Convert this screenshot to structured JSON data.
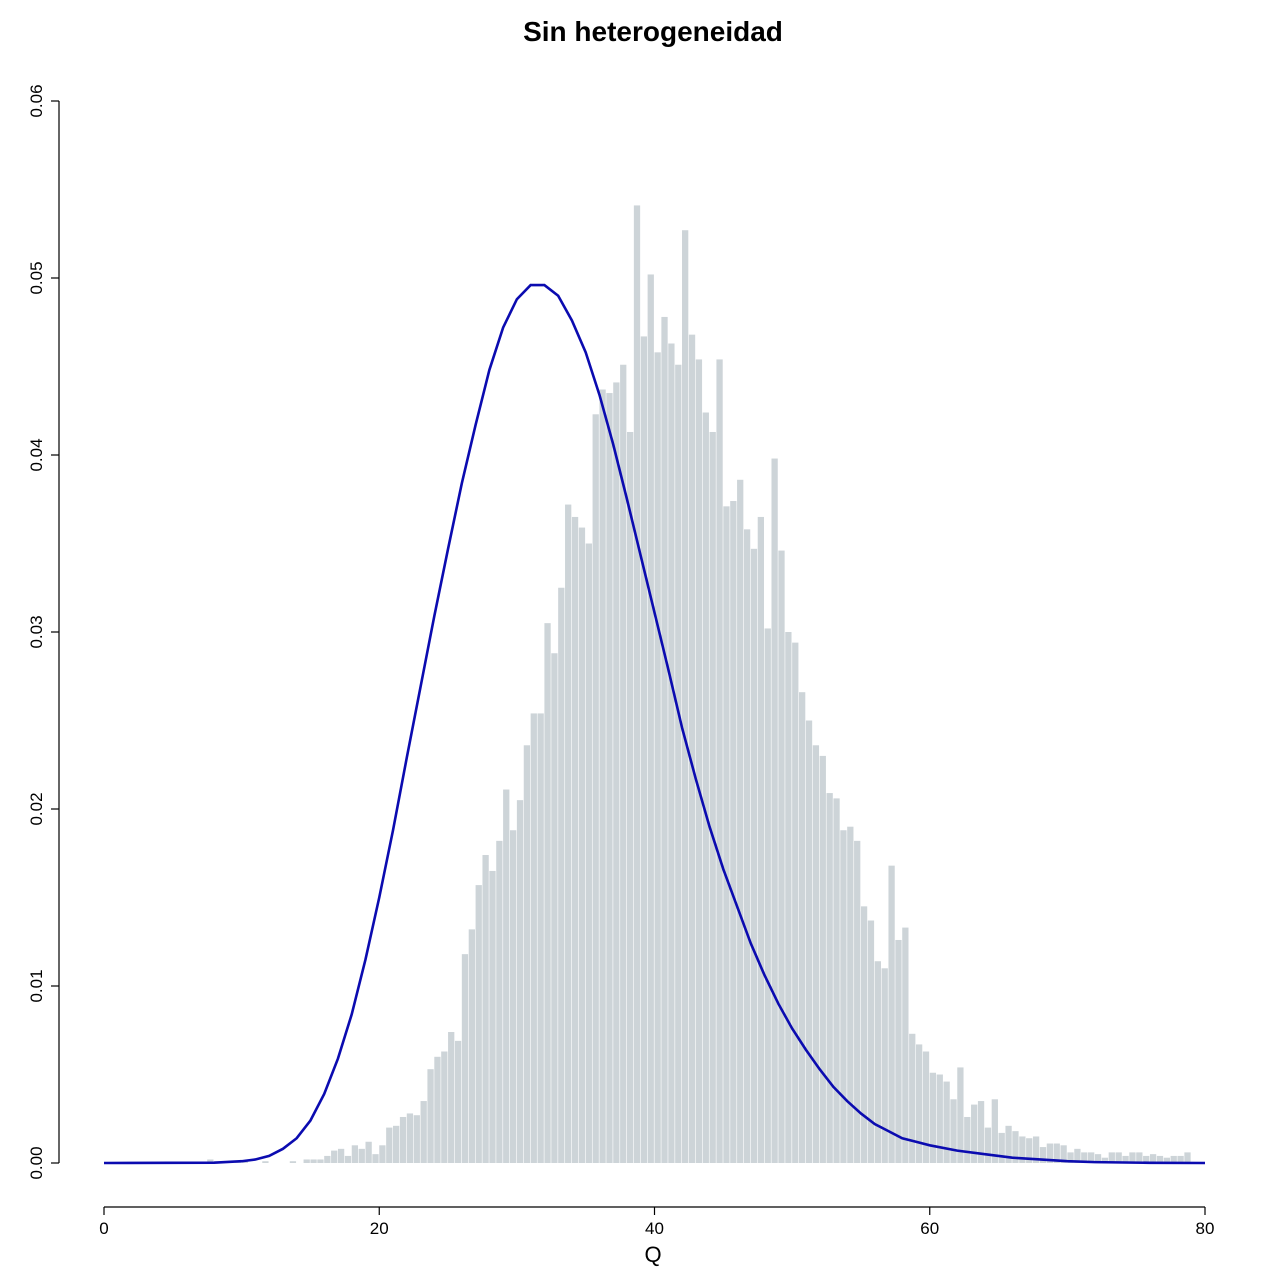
{
  "chart_data": {
    "type": "bar",
    "title": "Sin heterogeneidad",
    "xlabel": "Q",
    "ylabel": "",
    "xlim": [
      0,
      80
    ],
    "ylim": [
      0,
      0.06
    ],
    "x_ticks": [
      0,
      20,
      40,
      60,
      80
    ],
    "y_ticks": [
      "0.00",
      "0.01",
      "0.02",
      "0.03",
      "0.04",
      "0.05",
      "0.06"
    ],
    "grid": false,
    "bin_width": 0.5,
    "bin_start": 7.5,
    "values": [
      0.0002,
      0.0001,
      0.0,
      0.0,
      0.0001,
      0.0001,
      0.0,
      0.0,
      0.0001,
      0.0,
      0.0,
      0.0,
      0.0001,
      0.0,
      0.0002,
      0.0002,
      0.0002,
      0.0004,
      0.0007,
      0.0008,
      0.0004,
      0.001,
      0.0008,
      0.0012,
      0.0005,
      0.001,
      0.002,
      0.0021,
      0.0026,
      0.0028,
      0.0027,
      0.0035,
      0.0053,
      0.006,
      0.0063,
      0.0074,
      0.0069,
      0.0118,
      0.0132,
      0.0157,
      0.0174,
      0.0165,
      0.0182,
      0.0211,
      0.0188,
      0.0205,
      0.0236,
      0.0254,
      0.0254,
      0.0305,
      0.0288,
      0.0325,
      0.0372,
      0.0365,
      0.0359,
      0.035,
      0.0423,
      0.0437,
      0.0435,
      0.0441,
      0.0451,
      0.0413,
      0.0541,
      0.0467,
      0.0502,
      0.0458,
      0.0478,
      0.0463,
      0.0451,
      0.0527,
      0.0468,
      0.0454,
      0.0424,
      0.0413,
      0.0454,
      0.0371,
      0.0374,
      0.0386,
      0.0358,
      0.0347,
      0.0365,
      0.0302,
      0.0398,
      0.0346,
      0.03,
      0.0294,
      0.0266,
      0.025,
      0.0236,
      0.023,
      0.0209,
      0.0206,
      0.0188,
      0.019,
      0.0182,
      0.0145,
      0.0137,
      0.0114,
      0.011,
      0.0168,
      0.0126,
      0.0133,
      0.0073,
      0.0067,
      0.0063,
      0.0051,
      0.005,
      0.0046,
      0.0036,
      0.0054,
      0.0026,
      0.0033,
      0.0035,
      0.002,
      0.0036,
      0.0017,
      0.0021,
      0.0018,
      0.0015,
      0.0014,
      0.0015,
      0.0009,
      0.0011,
      0.0011,
      0.001,
      0.0006,
      0.0008,
      0.0006,
      0.0006,
      0.0005,
      0.0003,
      0.0006,
      0.0006,
      0.0004,
      0.0006,
      0.0006,
      0.0004,
      0.0005,
      0.0004,
      0.0003,
      0.0004,
      0.0004,
      0.0006
    ],
    "density_curve": {
      "type": "line",
      "color": "#0b0bb0",
      "x": [
        0,
        8,
        10,
        11,
        12,
        13,
        14,
        15,
        16,
        17,
        18,
        19,
        20,
        21,
        22,
        23,
        24,
        25,
        26,
        27,
        28,
        29,
        30,
        31,
        32,
        33,
        34,
        35,
        36,
        37,
        38,
        39,
        40,
        41,
        42,
        43,
        44,
        45,
        46,
        47,
        48,
        49,
        50,
        51,
        52,
        53,
        54,
        55,
        56,
        57,
        58,
        59,
        60,
        62,
        64,
        66,
        68,
        70,
        72,
        76,
        80
      ],
      "y": [
        0.0,
        2e-05,
        0.0001,
        0.0002,
        0.0004,
        0.0008,
        0.0014,
        0.0024,
        0.0039,
        0.0059,
        0.0084,
        0.0115,
        0.015,
        0.0188,
        0.0229,
        0.0269,
        0.0309,
        0.0347,
        0.0384,
        0.0417,
        0.0448,
        0.0472,
        0.0488,
        0.0496,
        0.0496,
        0.049,
        0.0476,
        0.0458,
        0.0434,
        0.0406,
        0.0375,
        0.0343,
        0.0311,
        0.0279,
        0.0246,
        0.0217,
        0.019,
        0.0166,
        0.0145,
        0.0124,
        0.0106,
        0.009,
        0.0076,
        0.0064,
        0.0053,
        0.0043,
        0.0035,
        0.0028,
        0.0022,
        0.0018,
        0.0014,
        0.0012,
        0.001,
        0.0007,
        0.0005,
        0.0003,
        0.0002,
        0.0001,
        5e-05,
        1e-05,
        0.0
      ]
    }
  }
}
